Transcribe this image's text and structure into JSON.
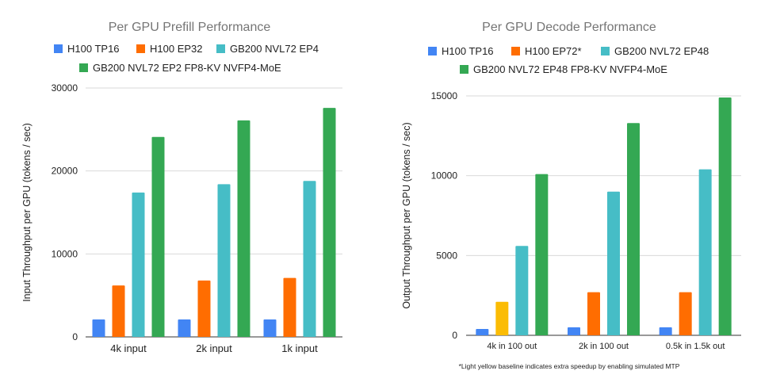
{
  "chart_data": [
    {
      "type": "bar",
      "title": "Per GPU Prefill Performance",
      "ylabel": "Input Throughput per GPU (tokens / sec)",
      "xlabel": "",
      "categories": [
        "4k input",
        "2k input",
        "1k input"
      ],
      "ylim": [
        0,
        30000
      ],
      "yticks": [
        "0",
        "10000",
        "20000",
        "30000"
      ],
      "grid": true,
      "legend_position": "top",
      "series": [
        {
          "name": "H100 TP16",
          "color": "#4285f4",
          "values": [
            2100,
            2100,
            2100
          ]
        },
        {
          "name": "H100 EP32",
          "color": "#ff6d01",
          "values": [
            6200,
            6800,
            7100
          ]
        },
        {
          "name": "GB200 NVL72 EP4",
          "color": "#46bdc6",
          "values": [
            17400,
            18400,
            18800
          ]
        },
        {
          "name": "GB200 NVL72 EP2 FP8-KV NVFP4-MoE",
          "color": "#34a853",
          "values": [
            24100,
            26100,
            27600
          ]
        }
      ]
    },
    {
      "type": "bar",
      "title": "Per GPU Decode Performance",
      "ylabel": "Output Throughput per GPU (tokens / sec)",
      "xlabel": "",
      "categories": [
        "4k in 100 out",
        "2k in 100 out",
        "0.5k in 1.5k out"
      ],
      "ylim": [
        0,
        15000
      ],
      "yticks": [
        "0",
        "5000",
        "10000",
        "15000"
      ],
      "grid": true,
      "legend_position": "top",
      "series": [
        {
          "name": "H100 TP16",
          "color": "#4285f4",
          "values": [
            400,
            500,
            500
          ]
        },
        {
          "name": "H100 EP72*",
          "color": "#ff6d01",
          "values": [
            2100,
            2700,
            2700
          ],
          "point_colors": [
            "#fbbc04",
            "#ff6d01",
            "#ff6d01"
          ]
        },
        {
          "name": "GB200 NVL72 EP48",
          "color": "#46bdc6",
          "values": [
            5600,
            9000,
            10400
          ]
        },
        {
          "name": "GB200 NVL72 EP48 FP8-KV NVFP4-MoE",
          "color": "#34a853",
          "values": [
            10100,
            13300,
            14900
          ]
        }
      ],
      "footnote": "*Light yellow baseline indicates extra speedup by enabling simulated MTP"
    }
  ]
}
